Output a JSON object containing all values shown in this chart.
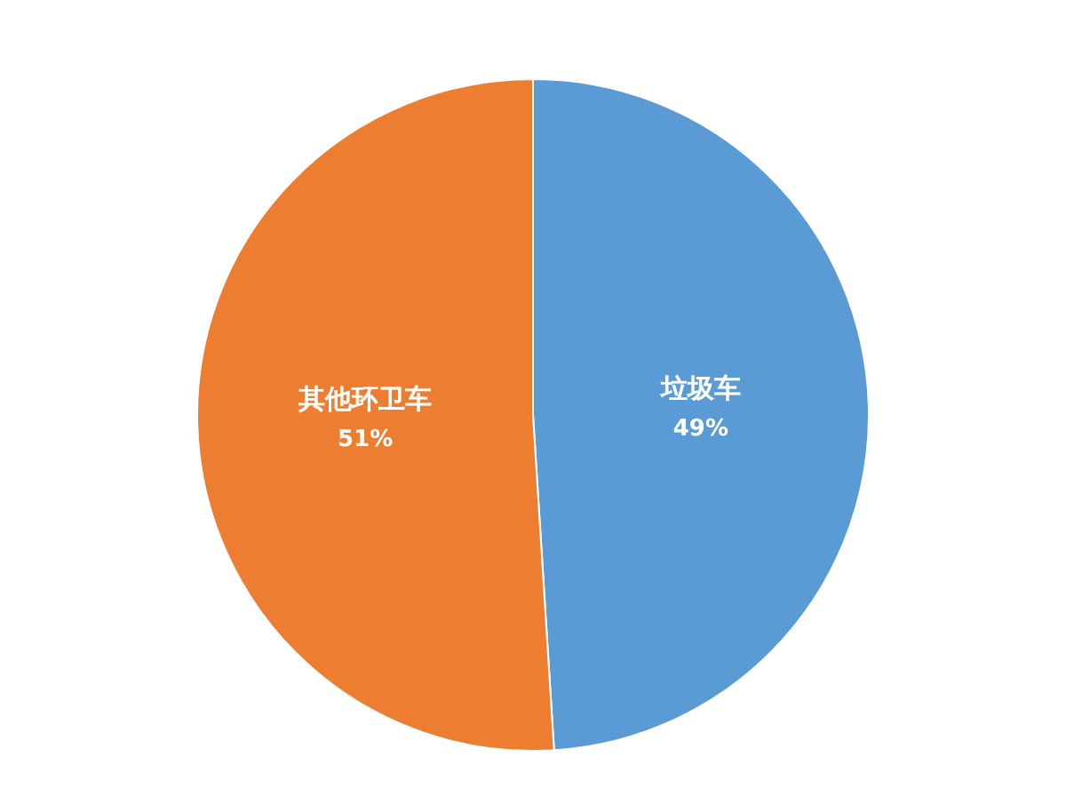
{
  "chart_data": {
    "type": "pie",
    "categories": [
      "垃圾车",
      "其他环卫车"
    ],
    "values": [
      49,
      51
    ],
    "colors": [
      "#5b9bd5",
      "#ed7d31"
    ],
    "value_labels": [
      "49%",
      "51%"
    ],
    "legend": false
  }
}
